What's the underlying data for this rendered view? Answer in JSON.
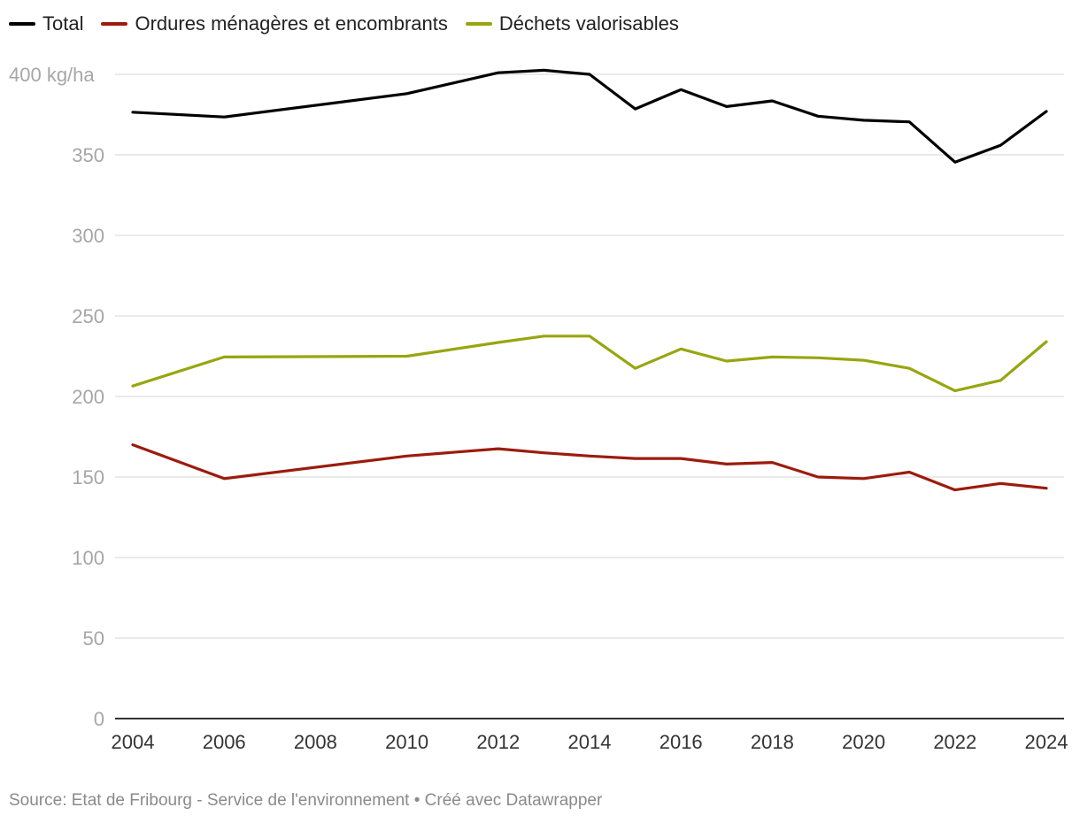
{
  "chart_data": {
    "type": "line",
    "title": "",
    "ylabel_unit": "kg/ha",
    "ylim": [
      0,
      400
    ],
    "yticks": [
      0,
      50,
      100,
      150,
      200,
      250,
      300,
      350,
      400
    ],
    "yticks_labels": [
      "0",
      "50",
      "100",
      "150",
      "200",
      "250",
      "300",
      "350",
      "400 kg/ha"
    ],
    "xlim": [
      2004,
      2024
    ],
    "xticks": [
      "2004",
      "2006",
      "2008",
      "2010",
      "2012",
      "2014",
      "2016",
      "2018",
      "2020",
      "2022",
      "2024"
    ],
    "x": [
      2004,
      2006,
      2010,
      2012,
      2013,
      2014,
      2015,
      2016,
      2017,
      2018,
      2019,
      2020,
      2021,
      2022,
      2023,
      2024
    ],
    "series": [
      {
        "name": "Total",
        "color": "#000000",
        "values": [
          376.5,
          373.5,
          388,
          401,
          402.5,
          400,
          378.5,
          390.5,
          380,
          383.5,
          374,
          371.5,
          370.5,
          345.5,
          356,
          377
        ]
      },
      {
        "name": "Ordures ménagères et encombrants",
        "color": "#9b1c0c",
        "values": [
          170,
          149,
          163,
          167.5,
          165,
          163,
          161.5,
          161.5,
          158,
          159,
          150,
          149,
          153,
          142,
          146,
          143
        ]
      },
      {
        "name": "Déchets valorisables",
        "color": "#97a60f",
        "values": [
          206.5,
          224.5,
          225,
          233.5,
          237.5,
          237.5,
          217.5,
          229.5,
          222,
          224.5,
          224,
          222.5,
          217.5,
          203.5,
          210,
          234
        ]
      }
    ]
  },
  "legend": {
    "items": [
      {
        "label": "Total",
        "color": "#000000"
      },
      {
        "label": "Ordures ménagères et encombrants",
        "color": "#9b1c0c"
      },
      {
        "label": "Déchets valorisables",
        "color": "#97a60f"
      }
    ]
  },
  "footer": {
    "text": "Source: Etat de Fribourg - Service de l'environnement • Créé avec Datawrapper"
  }
}
